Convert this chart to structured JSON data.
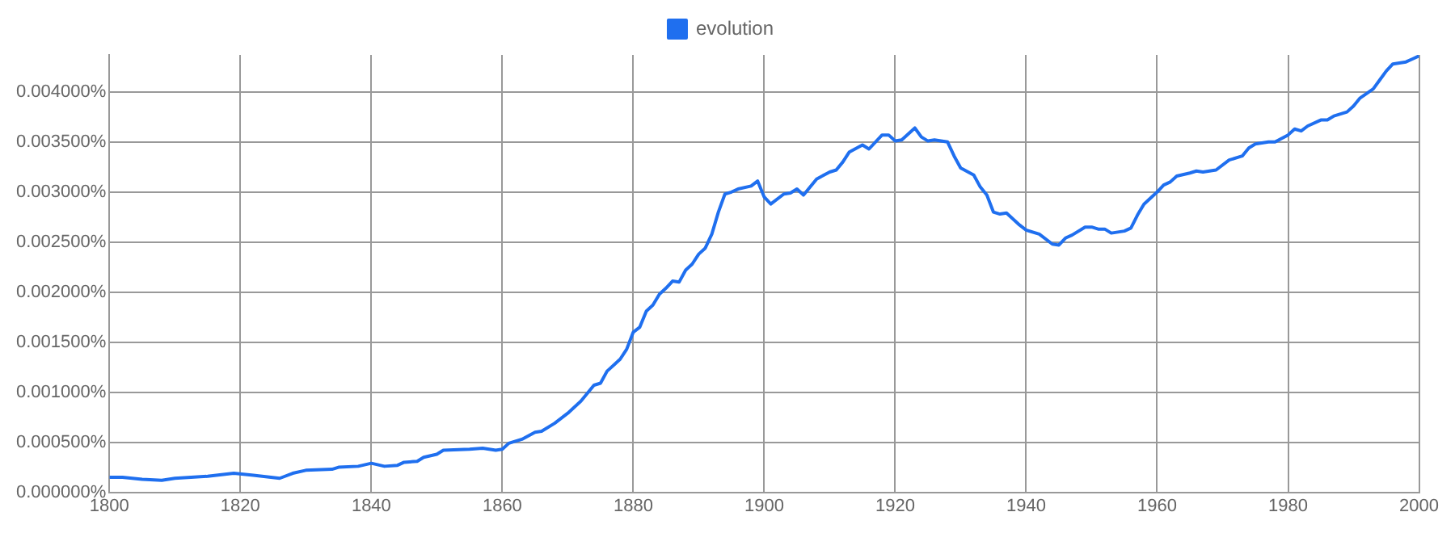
{
  "chart_data": {
    "type": "line",
    "legend": "top",
    "grid": true,
    "xlim": [
      1800,
      2000
    ],
    "xticks": [
      1800,
      1820,
      1840,
      1860,
      1880,
      1900,
      1920,
      1940,
      1960,
      1980,
      2000
    ],
    "ylim": [
      0,
      0.00437
    ],
    "yticks": [
      {
        "value": 0,
        "label": "0.000000%"
      },
      {
        "value": 0.0005,
        "label": "0.000500%"
      },
      {
        "value": 0.001,
        "label": "0.001000%"
      },
      {
        "value": 0.0015,
        "label": "0.001500%"
      },
      {
        "value": 0.002,
        "label": "0.002000%"
      },
      {
        "value": 0.0025,
        "label": "0.002500%"
      },
      {
        "value": 0.003,
        "label": "0.003000%"
      },
      {
        "value": 0.0035,
        "label": "0.003500%"
      },
      {
        "value": 0.004,
        "label": "0.004000%"
      }
    ],
    "series": [
      {
        "name": "evolution",
        "color": "#1f6fef",
        "x": [
          1800,
          1802,
          1805,
          1808,
          1810,
          1815,
          1819,
          1822,
          1826,
          1828,
          1830,
          1834,
          1835,
          1838,
          1840,
          1842,
          1844,
          1845,
          1847,
          1848,
          1850,
          1851,
          1855,
          1857,
          1859,
          1860,
          1861,
          1863,
          1865,
          1866,
          1868,
          1870,
          1872,
          1874,
          1875,
          1876,
          1878,
          1879,
          1880,
          1881,
          1882,
          1883,
          1884,
          1885,
          1886,
          1887,
          1888,
          1889,
          1890,
          1891,
          1892,
          1893,
          1894,
          1895,
          1896,
          1898,
          1899,
          1900,
          1901,
          1903,
          1904,
          1905,
          1906,
          1908,
          1910,
          1911,
          1912,
          1913,
          1915,
          1916,
          1918,
          1919,
          1920,
          1921,
          1923,
          1924,
          1925,
          1926,
          1928,
          1929,
          1930,
          1932,
          1933,
          1934,
          1935,
          1936,
          1937,
          1939,
          1940,
          1942,
          1944,
          1945,
          1946,
          1947,
          1949,
          1950,
          1951,
          1952,
          1953,
          1955,
          1956,
          1957,
          1958,
          1960,
          1961,
          1962,
          1963,
          1965,
          1966,
          1967,
          1969,
          1971,
          1973,
          1974,
          1975,
          1977,
          1978,
          1980,
          1981,
          1982,
          1983,
          1985,
          1986,
          1987,
          1989,
          1990,
          1991,
          1993,
          1994,
          1995,
          1996,
          1998,
          1999,
          2000
        ],
        "values": [
          0.00015,
          0.00015,
          0.00013,
          0.00012,
          0.00014,
          0.00016,
          0.00019,
          0.00017,
          0.00014,
          0.00019,
          0.00022,
          0.00023,
          0.00025,
          0.00026,
          0.00029,
          0.00026,
          0.00027,
          0.0003,
          0.00031,
          0.00035,
          0.00038,
          0.00042,
          0.00043,
          0.00044,
          0.00042,
          0.00043,
          0.00049,
          0.00053,
          0.0006,
          0.00061,
          0.00069,
          0.00079,
          0.00091,
          0.00107,
          0.00109,
          0.00121,
          0.00133,
          0.00143,
          0.0016,
          0.00165,
          0.00181,
          0.00187,
          0.00198,
          0.00204,
          0.00211,
          0.0021,
          0.00222,
          0.00228,
          0.00238,
          0.00244,
          0.00258,
          0.0028,
          0.00298,
          0.003,
          0.00303,
          0.00306,
          0.00311,
          0.00295,
          0.00288,
          0.00298,
          0.00299,
          0.00303,
          0.00297,
          0.00313,
          0.0032,
          0.00322,
          0.0033,
          0.0034,
          0.00347,
          0.00343,
          0.00357,
          0.00357,
          0.00351,
          0.00352,
          0.00364,
          0.00355,
          0.00351,
          0.00352,
          0.0035,
          0.00336,
          0.00324,
          0.00317,
          0.00305,
          0.00297,
          0.0028,
          0.00278,
          0.00279,
          0.00267,
          0.00262,
          0.00258,
          0.00248,
          0.00247,
          0.00254,
          0.00257,
          0.00265,
          0.00265,
          0.00263,
          0.00263,
          0.00259,
          0.00261,
          0.00264,
          0.00277,
          0.00288,
          0.003,
          0.00307,
          0.0031,
          0.00316,
          0.00319,
          0.00321,
          0.0032,
          0.00322,
          0.00332,
          0.00336,
          0.00344,
          0.00348,
          0.0035,
          0.0035,
          0.00357,
          0.00363,
          0.00361,
          0.00366,
          0.00372,
          0.00372,
          0.00376,
          0.0038,
          0.00386,
          0.00394,
          0.00403,
          0.00412,
          0.00421,
          0.00428,
          0.0043,
          0.00433,
          0.00436
        ]
      }
    ]
  }
}
